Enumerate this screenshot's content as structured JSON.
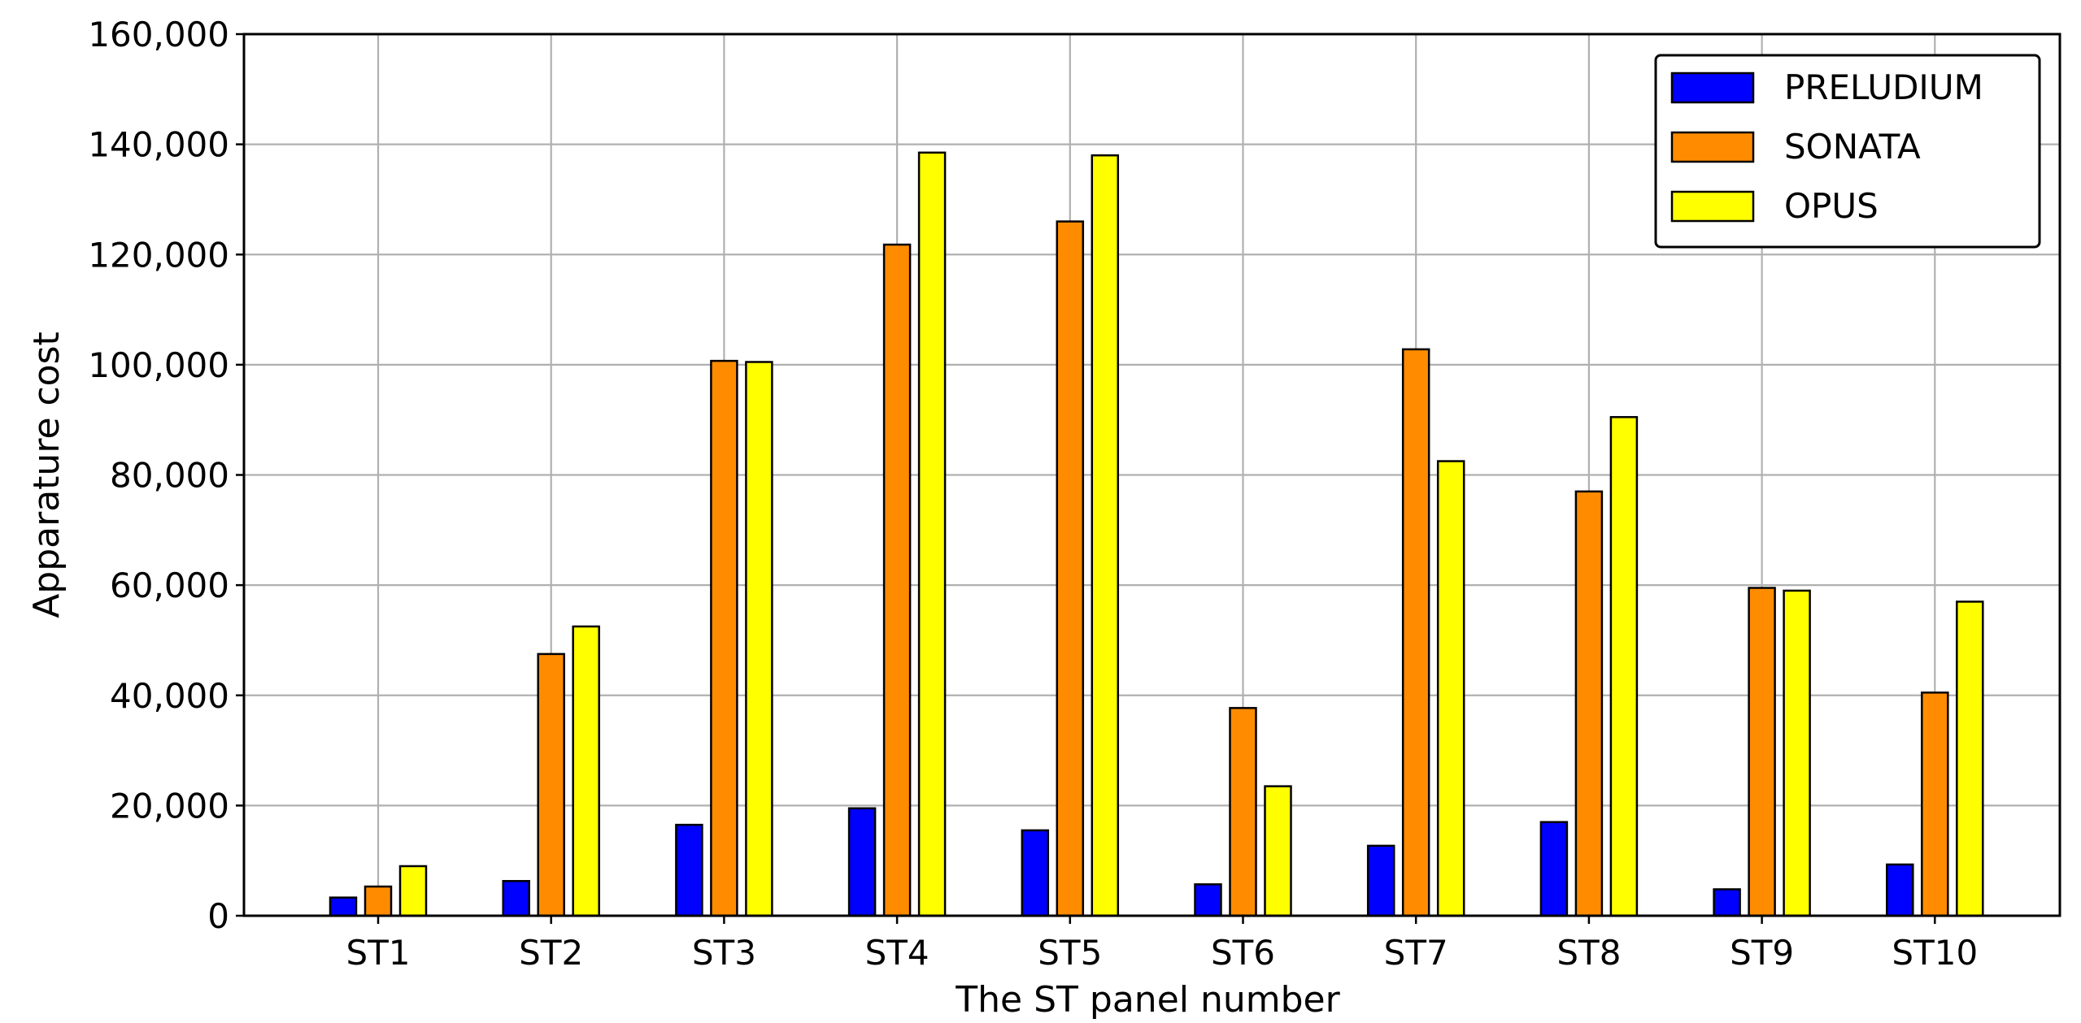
{
  "chart_data": {
    "type": "bar",
    "xlabel": "The ST panel number",
    "ylabel": "Apparature cost",
    "ylim": [
      0,
      160000
    ],
    "yticks": [
      {
        "value": 0,
        "label": "0"
      },
      {
        "value": 20000,
        "label": "20,000"
      },
      {
        "value": 40000,
        "label": "40,000"
      },
      {
        "value": 60000,
        "label": "60,000"
      },
      {
        "value": 80000,
        "label": "80,000"
      },
      {
        "value": 100000,
        "label": "100,000"
      },
      {
        "value": 120000,
        "label": "120,000"
      },
      {
        "value": 140000,
        "label": "140,000"
      },
      {
        "value": 160000,
        "label": "160,000"
      }
    ],
    "categories": [
      "ST1",
      "ST2",
      "ST3",
      "ST4",
      "ST5",
      "ST6",
      "ST7",
      "ST8",
      "ST9",
      "ST10"
    ],
    "series": [
      {
        "name": "PRELUDIUM",
        "color": "#0000ff",
        "values": [
          3300,
          6300,
          16500,
          19500,
          15500,
          5700,
          12700,
          17000,
          4800,
          9300
        ]
      },
      {
        "name": "SONATA",
        "color": "#ff8c00",
        "values": [
          5300,
          47500,
          100700,
          121800,
          126000,
          37700,
          102800,
          77000,
          59500,
          40500
        ]
      },
      {
        "name": "OPUS",
        "color": "#ffff00",
        "values": [
          9000,
          52500,
          100500,
          138500,
          138000,
          23500,
          82500,
          90500,
          59000,
          57000
        ]
      }
    ],
    "grid": true,
    "legend_position": "top-right"
  }
}
